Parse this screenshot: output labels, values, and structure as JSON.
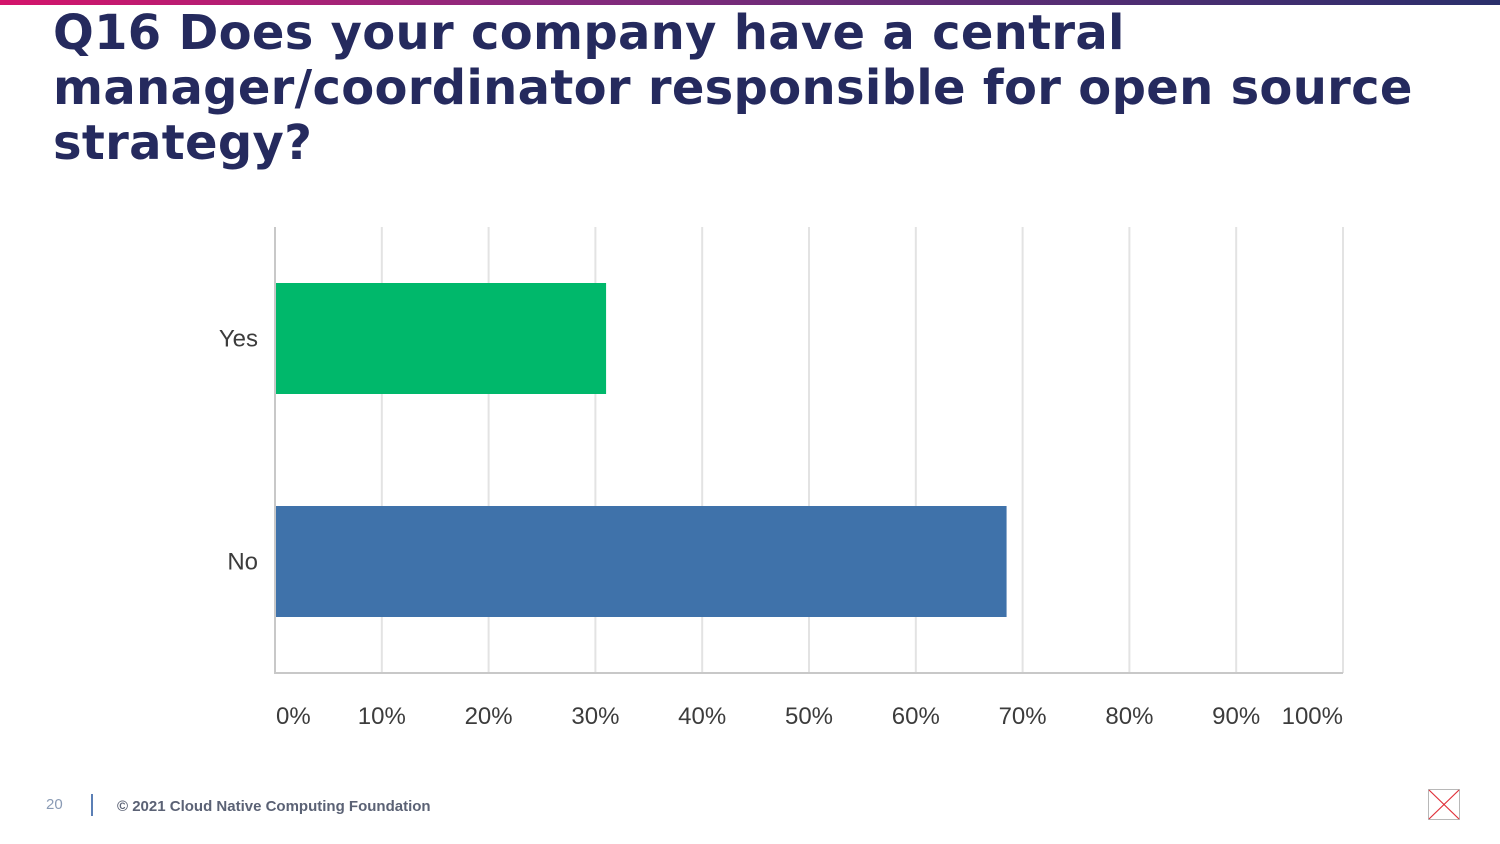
{
  "slide": {
    "title": "Q16 Does your company have a central manager/coordinator responsible for open source strategy?",
    "page_number": "20",
    "copyright": "© 2021 Cloud Native Computing Foundation"
  },
  "colors": {
    "title": "#252a5e",
    "yes_bar": "#00b86b",
    "no_bar": "#3f72aa"
  },
  "chart_data": {
    "type": "bar",
    "orientation": "horizontal",
    "categories": [
      "Yes",
      "No"
    ],
    "values": [
      31,
      68.5
    ],
    "value_unit": "%",
    "bar_colors": [
      "#00b86b",
      "#3f72aa"
    ],
    "xlim": [
      0,
      100
    ],
    "x_ticks": [
      0,
      10,
      20,
      30,
      40,
      50,
      60,
      70,
      80,
      90,
      100
    ],
    "x_tick_labels": [
      "0%",
      "10%",
      "20%",
      "30%",
      "40%",
      "50%",
      "60%",
      "70%",
      "80%",
      "90%",
      "100%"
    ],
    "grid": true
  },
  "icons": {
    "corner": "image-placeholder-icon"
  }
}
